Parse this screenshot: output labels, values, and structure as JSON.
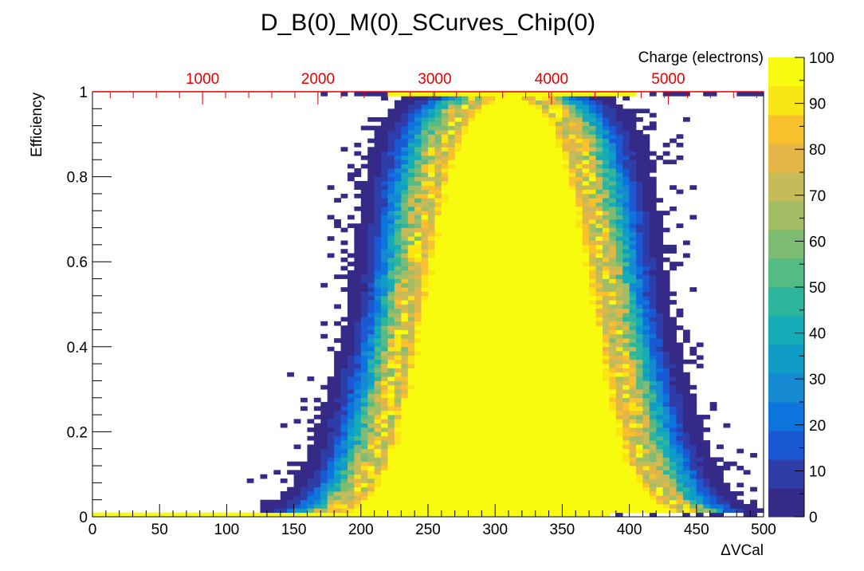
{
  "chart_data": {
    "type": "heatmap",
    "title": "D_B(0)_M(0)_SCurves_Chip(0)",
    "xlabel": "ΔVCal",
    "ylabel": "Efficiency",
    "top_axis_label": "Charge (electrons)",
    "xlim": [
      0,
      500
    ],
    "ylim": [
      0,
      1
    ],
    "zlim": [
      0,
      100
    ],
    "x_ticks": [
      "0",
      "50",
      "100",
      "150",
      "200",
      "250",
      "300",
      "350",
      "400",
      "450",
      "500"
    ],
    "y_ticks": [
      "0",
      "0.2",
      "0.4",
      "0.6",
      "0.8",
      "1"
    ],
    "top_ticks": [
      "1000",
      "2000",
      "3000",
      "4000",
      "5000"
    ],
    "top_tick_positions_vcal": [
      82,
      168,
      255,
      342,
      429
    ],
    "z_ticks": [
      "0",
      "10",
      "20",
      "30",
      "40",
      "50",
      "60",
      "70",
      "80",
      "90",
      "100"
    ],
    "colorscale": [
      "#352a87",
      "#2e3da8",
      "#1a58d4",
      "#0d74de",
      "#1689d3",
      "#0f9dc7",
      "#15acb7",
      "#2db59e",
      "#54bb85",
      "#7ebc74",
      "#a3bd65",
      "#c5bb58",
      "#e3b647",
      "#f9c12e",
      "#f9e414",
      "#f9fb0e"
    ],
    "x_bins": 100,
    "y_bins": 100,
    "s_curve_rising": {
      "center_vcal": 238,
      "spread_vcal": 38
    },
    "s_curve_falling": {
      "center_vcal": 383,
      "spread_vcal": 38
    },
    "bottom_row_value": 100,
    "top_row_value": 100
  }
}
